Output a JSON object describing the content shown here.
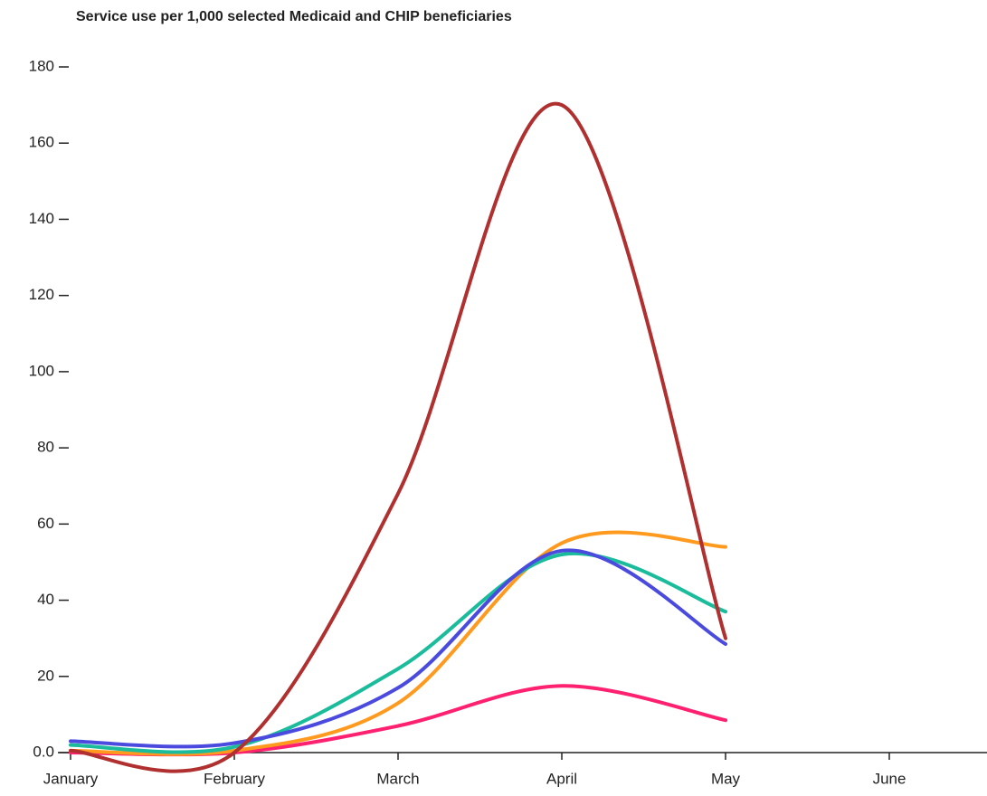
{
  "chart_data": {
    "type": "line",
    "title": "Service use per 1,000 selected Medicaid and CHIP beneficiaries",
    "categories": [
      "January",
      "February",
      "March",
      "April",
      "May",
      "June"
    ],
    "series": [
      {
        "color": "#ff2070",
        "values": [
          0,
          0,
          7,
          17.5,
          8.5,
          null
        ]
      },
      {
        "color": "#ff9a1f",
        "values": [
          0.5,
          0.5,
          13,
          55,
          54,
          null
        ]
      },
      {
        "color": "#1abc9c",
        "values": [
          2,
          1.5,
          22,
          52,
          37,
          null
        ]
      },
      {
        "color": "#4a4adf",
        "values": [
          3,
          2.5,
          17,
          53,
          28.5,
          null
        ]
      },
      {
        "color": "#b03030",
        "values": [
          0.5,
          0,
          68,
          170,
          30,
          null
        ]
      }
    ],
    "ylim": [
      0,
      180
    ],
    "yticks": [
      {
        "value": 0,
        "label": "0.0"
      },
      20,
      40,
      60,
      80,
      100,
      120,
      140,
      160,
      180
    ]
  }
}
